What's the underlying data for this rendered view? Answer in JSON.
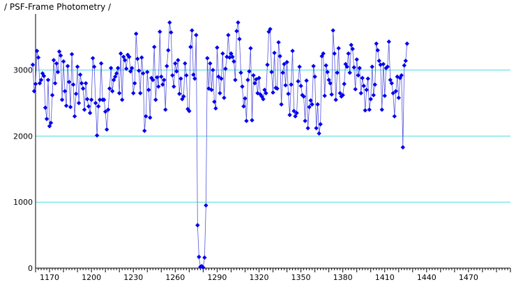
{
  "title": "/ PSF-Frame Photometry /",
  "chart_data": {
    "type": "scatter",
    "title": "/ PSF-Frame Photometry /",
    "xlabel": "",
    "ylabel": "",
    "xlim": [
      1160,
      1500
    ],
    "ylim": [
      0,
      3850
    ],
    "x_ticks": [
      1170,
      1200,
      1230,
      1260,
      1290,
      1320,
      1350,
      1380,
      1410,
      1440,
      1470
    ],
    "y_ticks": [
      0,
      1000,
      2000,
      3000
    ],
    "y_gridlines": [
      1000,
      2000,
      3000
    ],
    "grid": true,
    "colors": {
      "points": "#0000ee",
      "line": "#5555dd",
      "grid": "#44dddd",
      "axis": "#000000"
    },
    "series": [
      {
        "name": "",
        "x_start": 1158,
        "x_step": 1,
        "values": [
          3080,
          2680,
          2790,
          3290,
          3190,
          2800,
          2850,
          2950,
          2910,
          2430,
          2260,
          2850,
          2150,
          2200,
          2620,
          3150,
          2800,
          3100,
          2970,
          3280,
          3220,
          2550,
          3130,
          2680,
          2460,
          3060,
          2820,
          2440,
          3240,
          2780,
          2300,
          2640,
          3050,
          2500,
          2930,
          2800,
          2720,
          2400,
          2800,
          2560,
          2450,
          2350,
          2550,
          3180,
          3050,
          2500,
          2010,
          2450,
          2550,
          3100,
          2550,
          2550,
          2370,
          2100,
          2400,
          2720,
          3030,
          2680,
          2850,
          2900,
          2950,
          3030,
          2650,
          3250,
          2550,
          3200,
          3150,
          3020,
          3230,
          3200,
          2980,
          3030,
          2650,
          2800,
          3550,
          3170,
          2990,
          2650,
          3190,
          2950,
          2080,
          2300,
          2970,
          2700,
          2280,
          2880,
          2850,
          3350,
          2550,
          2890,
          2750,
          3580,
          2900,
          2780,
          2850,
          2400,
          3060,
          3300,
          3720,
          3570,
          2920,
          2750,
          3100,
          2980,
          3150,
          2640,
          2870,
          2560,
          2600,
          3100,
          2920,
          2410,
          2380,
          3350,
          3600,
          2930,
          2870,
          3530,
          650,
          170,
          20,
          30,
          10,
          160,
          950,
          3180,
          2720,
          3100,
          2700,
          3000,
          2520,
          2420,
          3340,
          2900,
          2650,
          2870,
          3250,
          2580,
          3020,
          3200,
          3530,
          3190,
          3250,
          3200,
          3130,
          2850,
          3590,
          3720,
          3470,
          2960,
          2750,
          2450,
          2570,
          2230,
          2850,
          2980,
          3330,
          2240,
          2920,
          2800,
          2860,
          2650,
          2880,
          2630,
          2600,
          2560,
          2700,
          2650,
          3080,
          3580,
          3620,
          2970,
          2660,
          3260,
          2730,
          2720,
          3420,
          3210,
          2480,
          2960,
          3090,
          2770,
          3120,
          2640,
          2320,
          2780,
          3290,
          2380,
          2300,
          2350,
          2830,
          3050,
          2760,
          2620,
          2600,
          2230,
          2840,
          2120,
          2440,
          2540,
          2480,
          3060,
          2900,
          2120,
          2480,
          2040,
          2180,
          3210,
          3250,
          2610,
          3070,
          2970,
          2850,
          2800,
          2630,
          3600,
          3250,
          2550,
          2960,
          3330,
          2650,
          2600,
          2620,
          2790,
          3090,
          3050,
          3250,
          2960,
          3380,
          3320,
          3040,
          2710,
          3160,
          2920,
          3030,
          2650,
          2880,
          2760,
          2390,
          2700,
          2870,
          2400,
          2560,
          3050,
          2620,
          2780,
          3400,
          3300,
          3140,
          3080,
          2400,
          3090,
          2610,
          3030,
          3050,
          3430,
          2850,
          2800,
          2650,
          2300,
          2680,
          2900,
          2580,
          2880,
          2920,
          1830,
          3070,
          3140,
          3400
        ]
      }
    ]
  }
}
